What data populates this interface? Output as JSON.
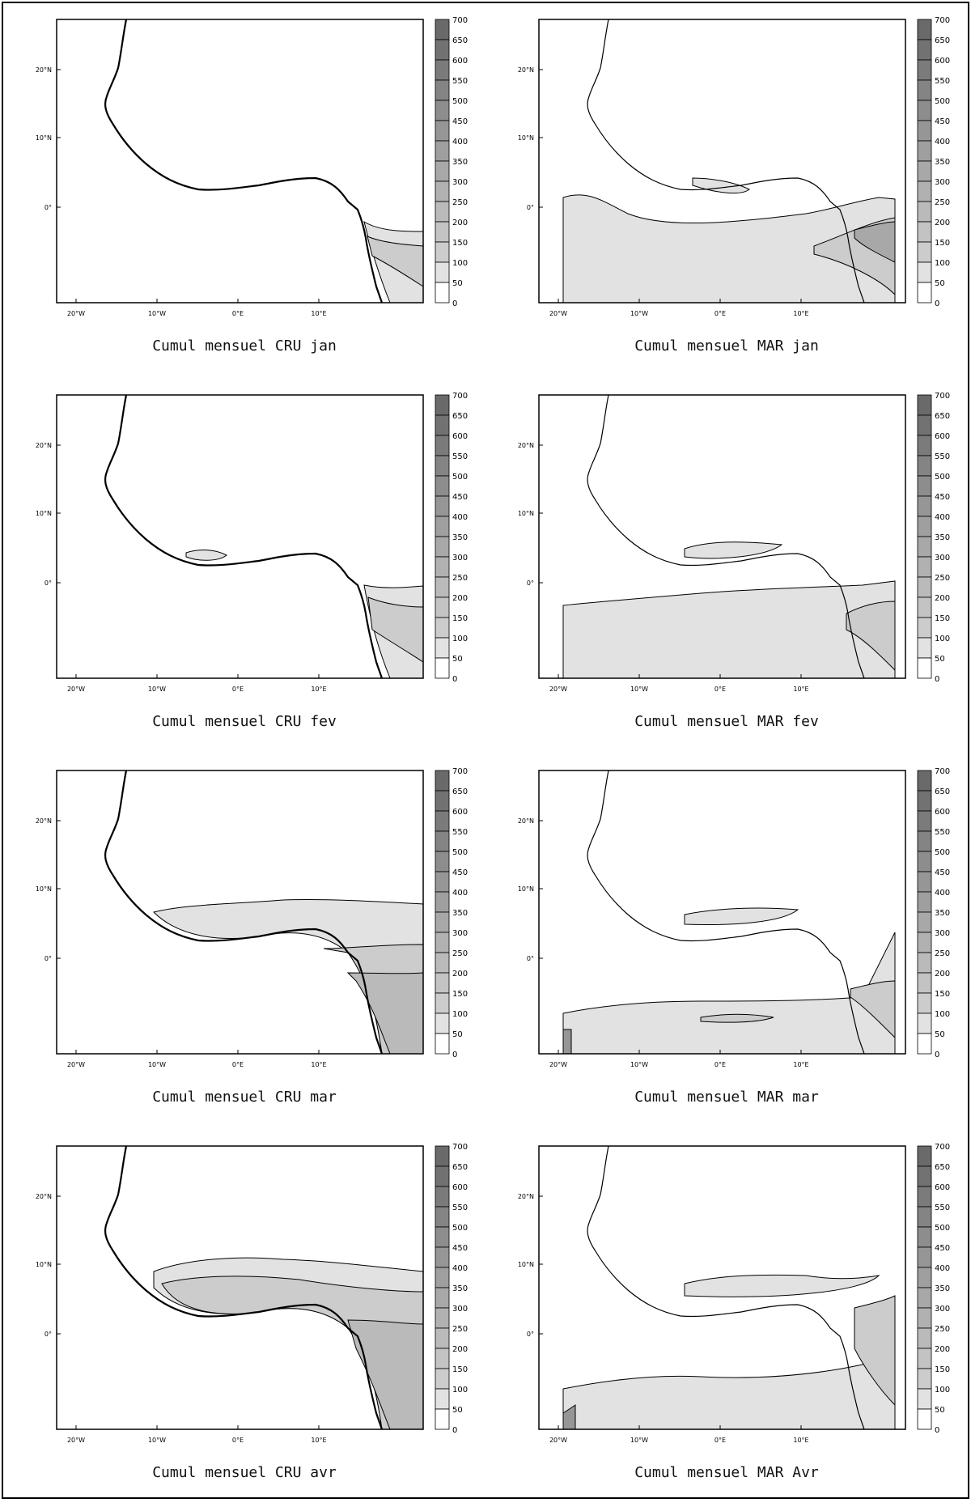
{
  "colorbar": {
    "levels": [
      "700",
      "650",
      "600",
      "550",
      "500",
      "450",
      "400",
      "350",
      "300",
      "250",
      "200",
      "150",
      "100",
      "50",
      "0"
    ],
    "colors": [
      "#6a6a6a",
      "#727272",
      "#7b7b7b",
      "#848484",
      "#8d8d8d",
      "#969696",
      "#9f9f9f",
      "#a8a8a8",
      "#b1b1b1",
      "#bababa",
      "#c3c3c3",
      "#cccccc",
      "#e2e2e2",
      "#ffffff"
    ]
  },
  "axes": {
    "lat_labels": [
      "20°N",
      "10°N",
      "0°"
    ],
    "lon_labels": [
      "20°W",
      "10°W",
      "0°E",
      "10°E"
    ]
  },
  "panels": [
    {
      "title": "Cumul mensuel CRU jan"
    },
    {
      "title": "Cumul mensuel MAR jan"
    },
    {
      "title": "Cumul mensuel CRU fev"
    },
    {
      "title": "Cumul mensuel MAR fev"
    },
    {
      "title": "Cumul mensuel CRU mar"
    },
    {
      "title": "Cumul mensuel MAR mar"
    },
    {
      "title": "Cumul mensuel CRU avr"
    },
    {
      "title": "Cumul mensuel MAR Avr"
    }
  ]
}
